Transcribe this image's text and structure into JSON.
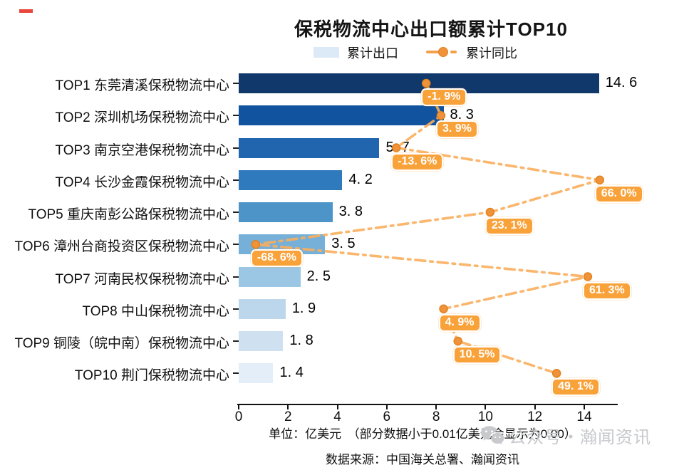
{
  "title": "保税物流中心出口额累计TOP10",
  "legend": {
    "bar_label": "累计出口",
    "line_label": "累计同比"
  },
  "chart_data": {
    "type": "bar",
    "orientation": "horizontal",
    "title": "保税物流中心出口额累计TOP10",
    "categories": [
      "TOP1 东莞清溪保税物流中心",
      "TOP2 深圳机场保税物流中心",
      "TOP3 南京空港保税物流中心",
      "TOP4 长沙金霞保税物流中心",
      "TOP5 重庆南彭公路保税物流中心",
      "TOP6 漳州台商投资区保税物流中心",
      "TOP7 河南民权保税物流中心",
      "TOP8 中山保税物流中心",
      "TOP9 铜陵（皖中南）保税物流中心",
      "TOP10 荆门保税物流中心"
    ],
    "series": [
      {
        "name": "累计出口",
        "type": "bar",
        "unit": "亿美元",
        "values": [
          14.6,
          8.3,
          5.7,
          4.2,
          3.8,
          3.5,
          2.5,
          1.9,
          1.8,
          1.4
        ],
        "labels": [
          "14. 6",
          "8. 3",
          "5. 7",
          "4. 2",
          "3. 8",
          "3. 5",
          "2. 5",
          "1. 9",
          "1. 8",
          "1. 4"
        ]
      },
      {
        "name": "累计同比",
        "type": "line",
        "unit": "%",
        "values": [
          -1.9,
          3.9,
          -13.6,
          66.0,
          23.1,
          -68.6,
          61.3,
          4.9,
          10.5,
          49.1
        ],
        "labels": [
          "-1. 9%",
          "3. 9%",
          "-13. 6%",
          "66. 0%",
          "23. 1%",
          "-68. 6%",
          "61. 3%",
          "4. 9%",
          "10. 5%",
          "49. 1%"
        ]
      }
    ],
    "x_axis": {
      "ticks": [
        0,
        2,
        4,
        6,
        8,
        10,
        12,
        14
      ],
      "range": [
        0,
        15.33
      ]
    },
    "secondary_axis": {
      "visible": false,
      "range_pct": [
        -75.3,
        72.7
      ]
    },
    "bar_colors": [
      "#11386b",
      "#1253a0",
      "#2165af",
      "#2e7abd",
      "#4d95c9",
      "#76b0d8",
      "#9cc7e4",
      "#bcd7ec",
      "#cfe1f1",
      "#e4eef8"
    ],
    "line_color": "#f9ae5d",
    "marker_color": "#f0923a",
    "marker_edge_color": "#e0821f",
    "label_box_color": "#f9a23a",
    "legend_position": "top",
    "grid": false
  },
  "footer": {
    "note": "单位：亿美元　（部分数据小于0.01亿美元会显示为0.00）",
    "source": "数据来源：中国海关总署、瀚闻资讯"
  },
  "watermark": {
    "text": "公众号・瀚闻资讯",
    "icon": "wechat-icon"
  }
}
